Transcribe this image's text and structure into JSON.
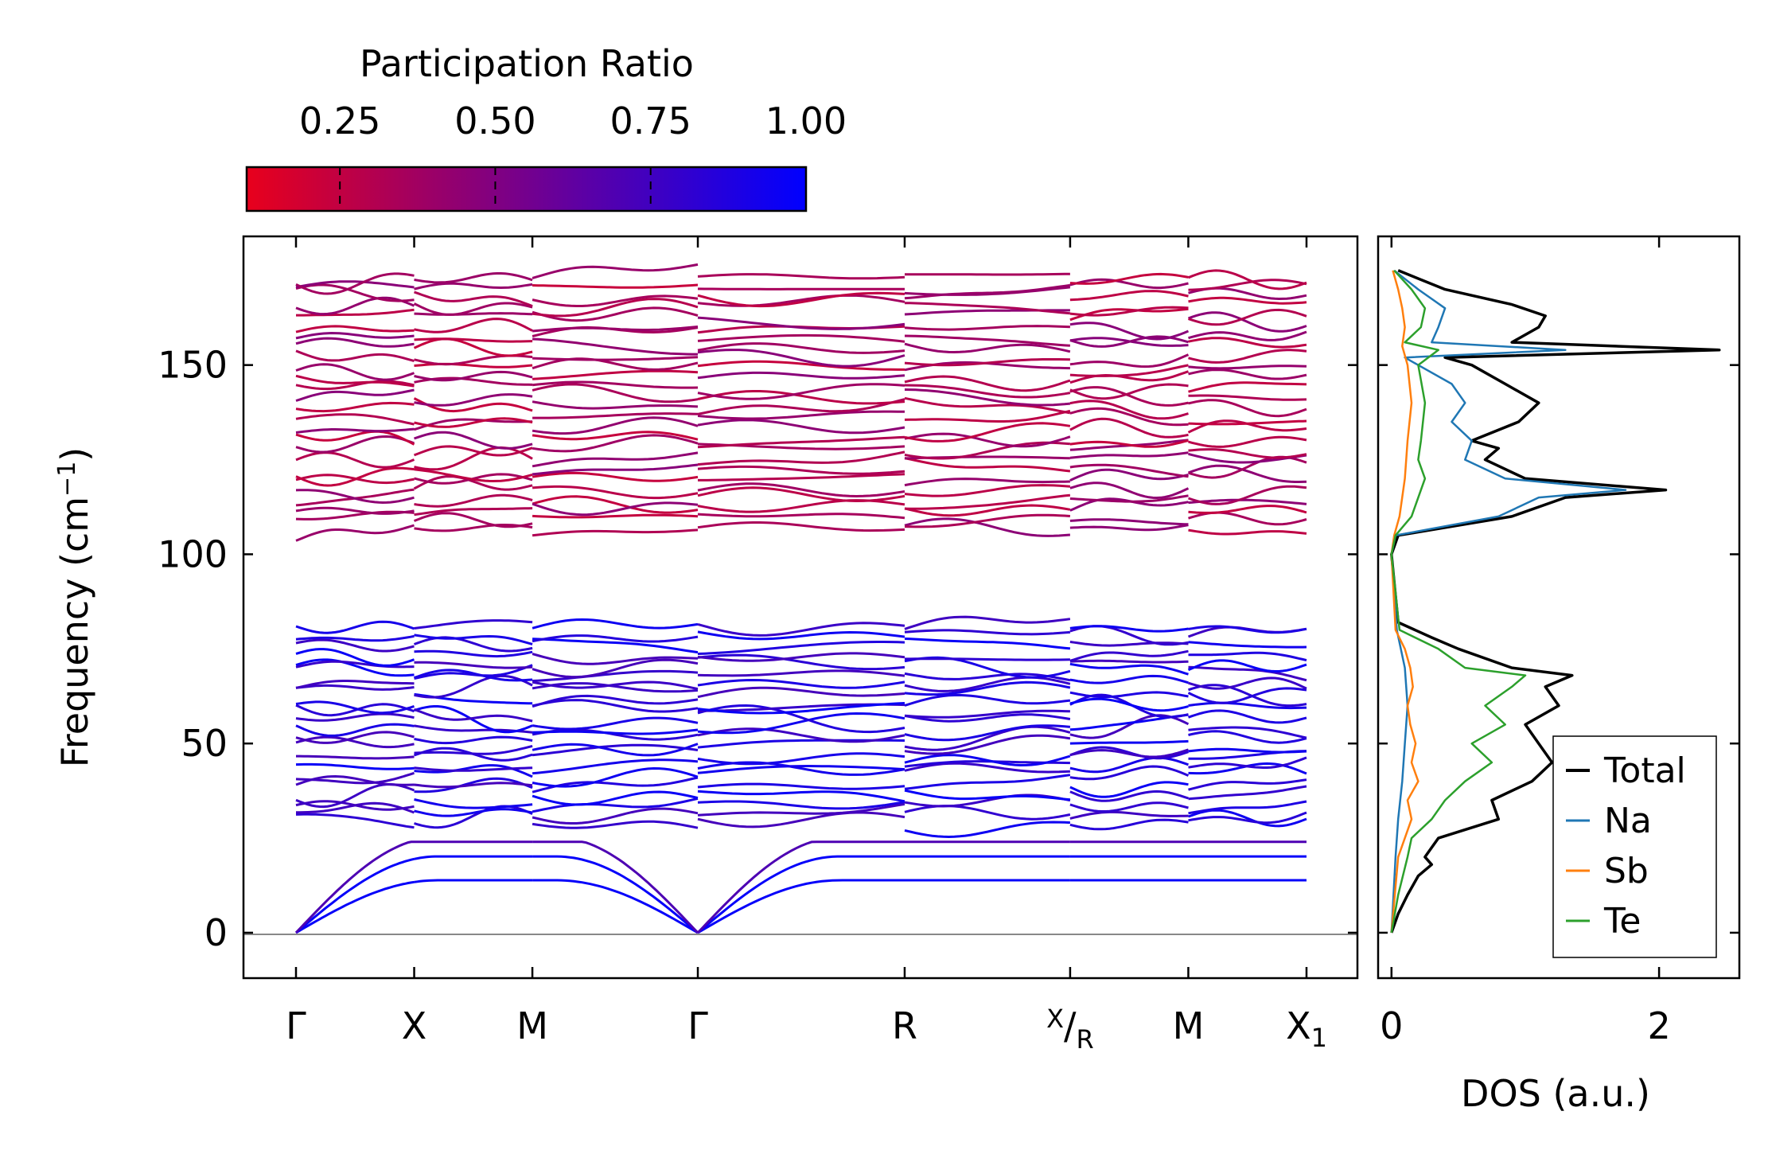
{
  "chart_data": [
    {
      "type": "line",
      "subtype": "phonon-band-structure",
      "colorbar": {
        "title": "Participation Ratio",
        "range": [
          0.1,
          1.0
        ],
        "ticks": [
          0.25,
          0.5,
          0.75,
          1.0
        ],
        "tick_labels": [
          "0.25",
          "0.50",
          "0.75",
          "1.00"
        ],
        "color_low": "#e8001c",
        "color_high": "#0000ff"
      },
      "ylabel": "Frequency (cm",
      "ylabel_sup": "−1",
      "ylabel_close": ")",
      "ylim": [
        -12,
        184
      ],
      "yticks": [
        0,
        50,
        100,
        150
      ],
      "ytick_labels": [
        "0",
        "50",
        "100",
        "150"
      ],
      "kpath": [
        {
          "pos": 0.0,
          "label": "Γ"
        },
        {
          "pos": 1.0,
          "label": "X"
        },
        {
          "pos": 2.0,
          "label": "M"
        },
        {
          "pos": 3.4,
          "label": "Γ"
        },
        {
          "pos": 5.15,
          "label": "R"
        },
        {
          "pos": 6.55,
          "label": "X",
          "sublabel": "R"
        },
        {
          "pos": 7.55,
          "label": "M"
        },
        {
          "pos": 8.55,
          "label": "X",
          "subscript": "1"
        }
      ],
      "zero_line": 0,
      "optical_high": {
        "range": [
          105,
          175
        ],
        "participation": 0.35
      },
      "optical_low": {
        "range": [
          28,
          82
        ],
        "participation": 0.85
      },
      "acoustic": {
        "range": [
          -3,
          24
        ],
        "participation": 0.98
      }
    },
    {
      "type": "line",
      "subtype": "density-of-states",
      "xlabel": "DOS (a.u.)",
      "xlim": [
        -0.1,
        2.6
      ],
      "xticks": [
        0,
        2
      ],
      "xtick_labels": [
        "0",
        "2"
      ],
      "ylim": [
        -12,
        184
      ],
      "series": [
        {
          "name": "Total",
          "color": "#000000",
          "y": [
            0,
            5,
            10,
            15,
            18,
            20,
            25,
            30,
            35,
            40,
            45,
            50,
            55,
            60,
            65,
            68,
            70,
            75,
            78,
            82,
            100,
            105,
            110,
            115,
            117,
            120,
            125,
            128,
            130,
            135,
            140,
            145,
            150,
            152,
            154,
            156,
            160,
            163,
            166,
            170,
            175
          ],
          "x": [
            0.0,
            0.05,
            0.12,
            0.2,
            0.3,
            0.25,
            0.35,
            0.8,
            0.75,
            1.05,
            1.2,
            1.1,
            1.0,
            1.25,
            1.15,
            1.35,
            0.9,
            0.5,
            0.3,
            0.05,
            0.0,
            0.05,
            0.9,
            1.3,
            2.05,
            1.0,
            0.7,
            0.8,
            0.6,
            0.95,
            1.1,
            0.85,
            0.6,
            0.4,
            2.45,
            0.9,
            1.1,
            1.15,
            0.9,
            0.4,
            0.05
          ]
        },
        {
          "name": "Na",
          "color": "#1f77b4",
          "y": [
            0,
            20,
            30,
            40,
            50,
            60,
            70,
            80,
            100,
            105,
            110,
            115,
            117,
            120,
            125,
            130,
            135,
            140,
            145,
            150,
            152,
            154,
            156,
            160,
            165,
            170,
            175
          ],
          "x": [
            0.0,
            0.03,
            0.05,
            0.08,
            0.1,
            0.12,
            0.1,
            0.04,
            0.0,
            0.03,
            0.8,
            1.1,
            1.75,
            0.85,
            0.55,
            0.6,
            0.45,
            0.55,
            0.45,
            0.2,
            0.1,
            1.3,
            0.3,
            0.35,
            0.4,
            0.2,
            0.02
          ]
        },
        {
          "name": "Sb",
          "color": "#ff7f0e",
          "y": [
            0,
            20,
            25,
            30,
            35,
            40,
            45,
            50,
            55,
            60,
            65,
            70,
            75,
            80,
            100,
            105,
            110,
            120,
            130,
            140,
            150,
            155,
            160,
            165,
            170,
            175
          ],
          "x": [
            0.0,
            0.05,
            0.1,
            0.15,
            0.12,
            0.2,
            0.15,
            0.18,
            0.14,
            0.12,
            0.16,
            0.14,
            0.1,
            0.03,
            0.0,
            0.02,
            0.06,
            0.1,
            0.12,
            0.15,
            0.12,
            0.08,
            0.1,
            0.08,
            0.05,
            0.01
          ]
        },
        {
          "name": "Te",
          "color": "#2ca02c",
          "y": [
            0,
            10,
            20,
            25,
            30,
            35,
            40,
            45,
            50,
            55,
            60,
            65,
            68,
            70,
            75,
            80,
            100,
            105,
            110,
            120,
            125,
            130,
            140,
            150,
            154,
            156,
            160,
            165,
            170,
            175
          ],
          "x": [
            0.0,
            0.05,
            0.12,
            0.15,
            0.3,
            0.4,
            0.55,
            0.75,
            0.6,
            0.85,
            0.7,
            0.9,
            1.0,
            0.55,
            0.35,
            0.06,
            0.0,
            0.03,
            0.15,
            0.25,
            0.2,
            0.22,
            0.25,
            0.2,
            0.35,
            0.1,
            0.22,
            0.25,
            0.15,
            0.02
          ]
        }
      ]
    }
  ]
}
